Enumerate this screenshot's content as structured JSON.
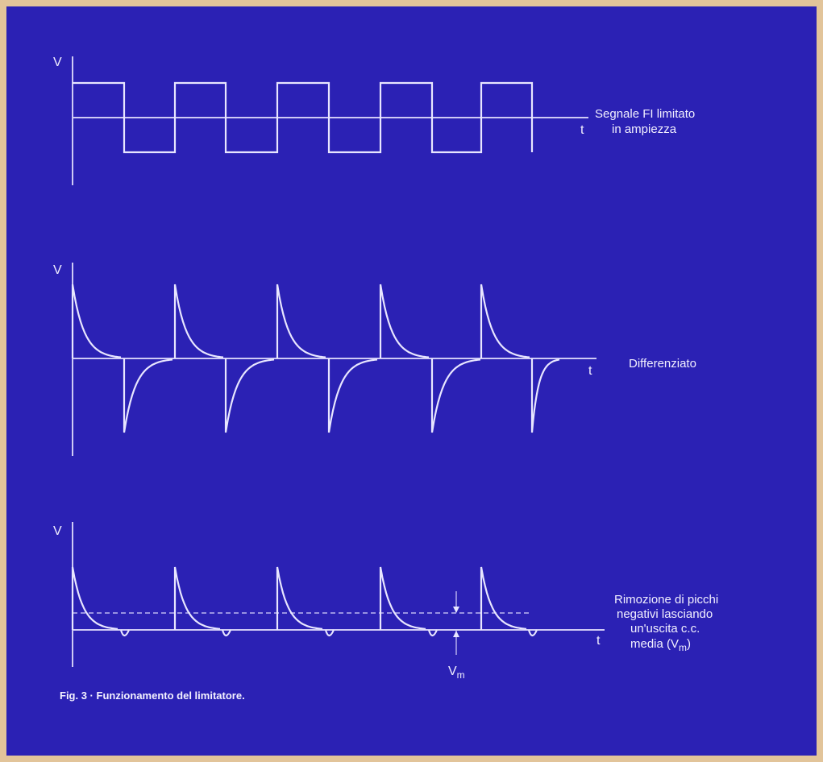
{
  "caption": "Fig. 3 · Funzionamento del limitatore.",
  "colors": {
    "background": "#2b21b4",
    "border": "#e2c49a",
    "trace": "#e8e6ff"
  },
  "panels": [
    {
      "y_axis_label": "V",
      "t_axis_label": "t",
      "description_lines": [
        "Segnale FI limitato",
        "in ampiezza"
      ],
      "waveform": "square"
    },
    {
      "y_axis_label": "V",
      "t_axis_label": "t",
      "description_lines": [
        "Differenziato"
      ],
      "waveform": "differentiated"
    },
    {
      "y_axis_label": "V",
      "t_axis_label": "t",
      "description_lines": [
        "Rimozione di picchi",
        "negativi lasciando",
        "un'uscita c.c.",
        "media (V",
        ")"
      ],
      "description_subscript": "m",
      "vm_label": "V",
      "vm_subscript": "m",
      "waveform": "clipped"
    }
  ]
}
